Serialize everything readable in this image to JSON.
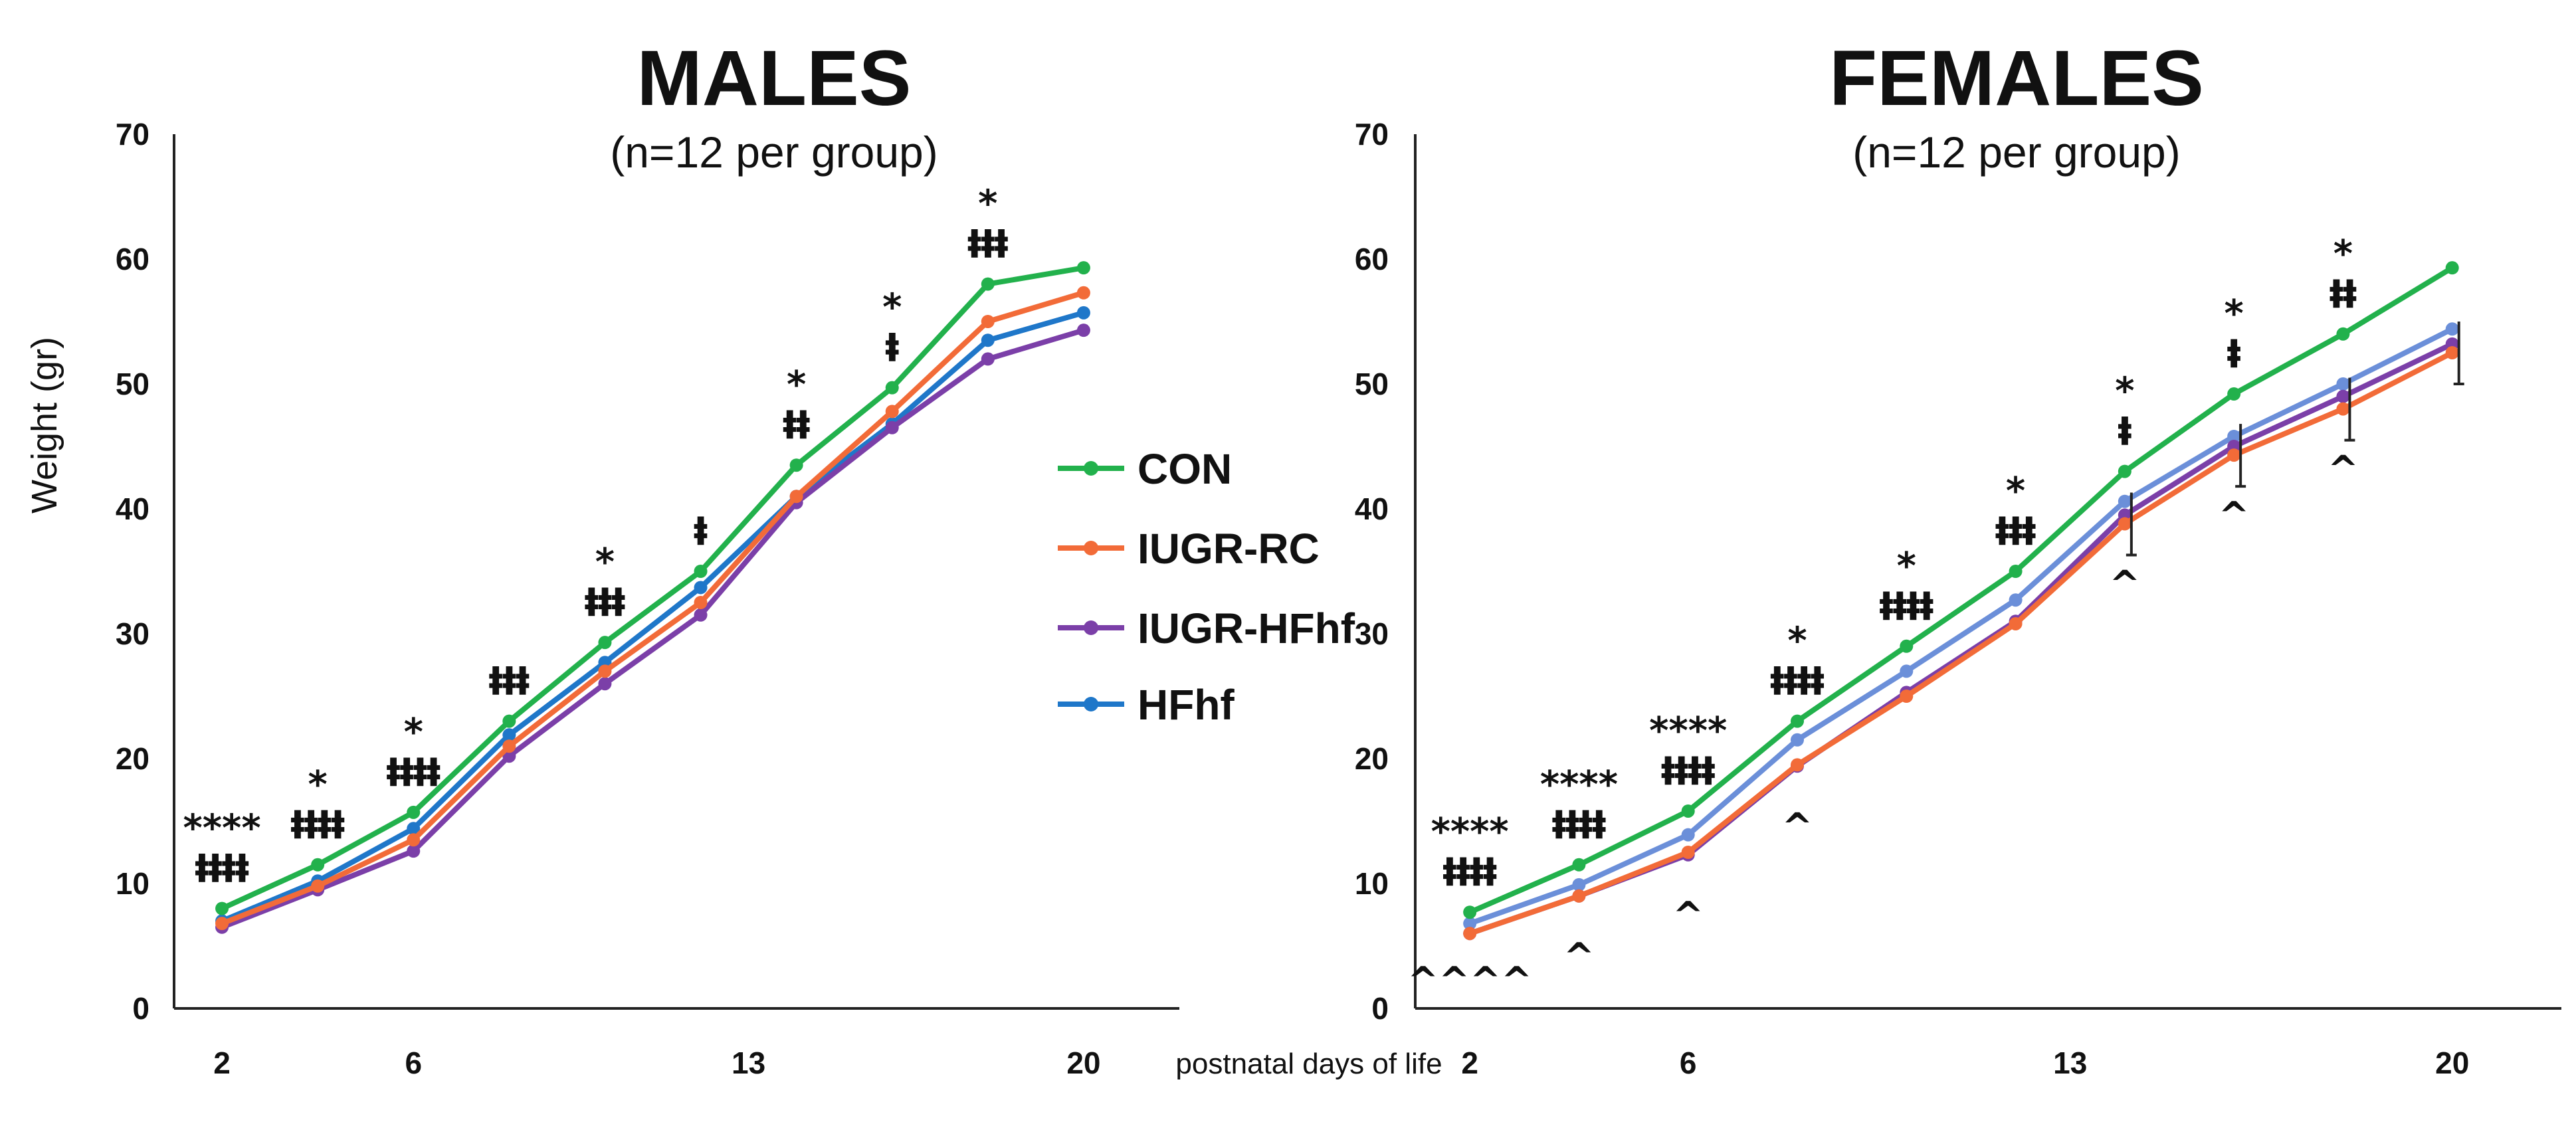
{
  "chart_data": [
    {
      "type": "line",
      "title": "MALES",
      "subtitle": "(n=12 per group)",
      "ylabel": "Weight (gr)",
      "xlabel": "postnatal days of life",
      "ylim": [
        0,
        70
      ],
      "yticks": [
        "0",
        "10",
        "20",
        "30",
        "40",
        "50",
        "60",
        "70"
      ],
      "xlim": [
        1,
        22
      ],
      "xticks": [
        "2",
        "6",
        "13",
        "20"
      ],
      "x": [
        2,
        4,
        6,
        8,
        10,
        12,
        14,
        16,
        18,
        20
      ],
      "series": [
        {
          "name": "CON",
          "color": "#22b14c",
          "values": [
            8,
            11.5,
            15.7,
            23,
            29.3,
            35,
            43.5,
            49.7,
            58,
            59.3
          ]
        },
        {
          "name": "IUGR-RC",
          "color": "#f26b38",
          "values": [
            6.8,
            9.8,
            13.5,
            21,
            27,
            32.5,
            41,
            47.8,
            55,
            57.3
          ]
        },
        {
          "name": "IUGR-HFhf",
          "color": "#7b3fa8",
          "values": [
            6.5,
            9.5,
            12.6,
            20.2,
            26,
            31.5,
            40.5,
            46.5,
            52,
            54.3
          ]
        },
        {
          "name": "HFhf",
          "color": "#1f77c9",
          "values": [
            7,
            10.2,
            14.4,
            21.9,
            27.7,
            33.7,
            41,
            46.8,
            53.5,
            55.7
          ]
        }
      ],
      "annotations": [
        {
          "x": 2,
          "lines": [
            "****",
            "ⱡⱡⱡⱡ"
          ]
        },
        {
          "x": 4,
          "lines": [
            "*",
            "ⱡⱡⱡⱡ"
          ]
        },
        {
          "x": 6,
          "lines": [
            "*",
            "ⱡⱡⱡⱡ"
          ]
        },
        {
          "x": 8,
          "lines": [
            "ⱡⱡⱡ"
          ]
        },
        {
          "x": 10,
          "lines": [
            "*",
            "ⱡⱡⱡ"
          ]
        },
        {
          "x": 12,
          "lines": [
            "ⱡ"
          ]
        },
        {
          "x": 14,
          "lines": [
            "*",
            "ⱡⱡ"
          ]
        },
        {
          "x": 16,
          "lines": [
            "*",
            "ⱡ"
          ]
        },
        {
          "x": 18,
          "lines": [
            "*",
            "ⱡⱡⱡ"
          ]
        }
      ]
    },
    {
      "type": "line",
      "title": "FEMALES",
      "subtitle": "(n=12 per group)",
      "ylabel": "",
      "xlabel": "postnatal days of life",
      "ylim": [
        0,
        70
      ],
      "yticks": [
        "0",
        "10",
        "20",
        "30",
        "40",
        "50",
        "60",
        "70"
      ],
      "xlim": [
        1,
        22
      ],
      "xticks": [
        "2",
        "6",
        "13",
        "20"
      ],
      "x": [
        2,
        4,
        6,
        8,
        10,
        12,
        14,
        16,
        18,
        20
      ],
      "series": [
        {
          "name": "CON",
          "color": "#22b14c",
          "values": [
            7.7,
            11.5,
            15.8,
            23,
            29,
            35,
            43,
            49.2,
            54,
            59.3
          ]
        },
        {
          "name": "IUGR-RC",
          "color": "#f26b38",
          "values": [
            6,
            9,
            12.5,
            19.5,
            25,
            30.8,
            38.8,
            44.3,
            48,
            52.5
          ]
        },
        {
          "name": "IUGR-HFhf",
          "color": "#7b3fa8",
          "values": [
            6,
            9,
            12.3,
            19.4,
            25.3,
            31,
            39.5,
            45,
            49,
            53.2
          ]
        },
        {
          "name": "HFhf",
          "color": "#6b8fd9",
          "values": [
            6.8,
            9.9,
            13.9,
            21.5,
            27,
            32.7,
            40.6,
            45.8,
            50,
            54.4
          ]
        }
      ],
      "annotations_above": [
        {
          "x": 2,
          "lines": [
            "****",
            "ⱡⱡⱡⱡ"
          ]
        },
        {
          "x": 4,
          "lines": [
            "****",
            "ⱡⱡⱡⱡ"
          ]
        },
        {
          "x": 6,
          "lines": [
            "****",
            "ⱡⱡⱡⱡ"
          ]
        },
        {
          "x": 8,
          "lines": [
            "*",
            "ⱡⱡⱡⱡ"
          ]
        },
        {
          "x": 10,
          "lines": [
            "*",
            "ⱡⱡⱡⱡ"
          ]
        },
        {
          "x": 12,
          "lines": [
            "*",
            "ⱡⱡⱡ"
          ]
        },
        {
          "x": 14,
          "lines": [
            "*",
            "ⱡ"
          ]
        },
        {
          "x": 16,
          "lines": [
            "*",
            "ⱡ"
          ]
        },
        {
          "x": 18,
          "lines": [
            "*",
            "ⱡⱡ"
          ]
        }
      ],
      "annotations_below": [
        {
          "x": 2,
          "text": "^^^^"
        },
        {
          "x": 4,
          "text": "^"
        },
        {
          "x": 6,
          "text": "^"
        },
        {
          "x": 8,
          "text": "^"
        },
        {
          "x": 14,
          "text": "^"
        },
        {
          "x": 16,
          "text": "^"
        },
        {
          "x": 18,
          "text": "^"
        }
      ]
    }
  ],
  "legend": {
    "items": [
      {
        "label": "CON",
        "color": "#22b14c"
      },
      {
        "label": "IUGR-RC",
        "color": "#f26b38"
      },
      {
        "label": "IUGR-HFhf",
        "color": "#7b3fa8"
      },
      {
        "label": "HFhf",
        "color": "#1f77c9"
      }
    ]
  },
  "shared_xlabel": "postnatal days of life"
}
